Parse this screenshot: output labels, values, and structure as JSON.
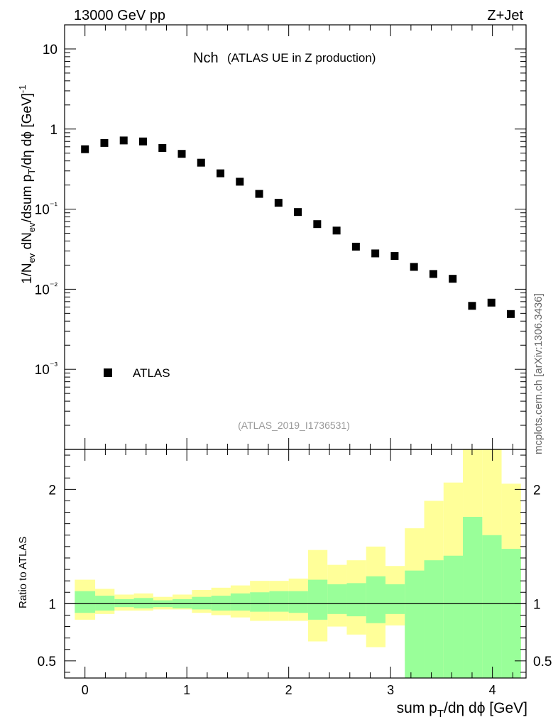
{
  "header": {
    "energy_label": "13000 GeV pp",
    "process_label": "Z+Jet",
    "side_label": "mcplots.cern.ch [arXiv:1306.3436]",
    "analysis_id": "(ATLAS_2019_I1736531)"
  },
  "chart_data": [
    {
      "type": "scatter",
      "panel": "main",
      "title": "Nch",
      "subtitle": "(ATLAS UE in Z production)",
      "ylabel": "1/N_ev dN_ev/dsum p_T/dη dϕ [GeV]^-1",
      "xlim": [
        -0.2,
        4.33
      ],
      "ylim": [
        0.0001,
        20
      ],
      "yscale": "log",
      "y_ticks": [
        "10⁻³",
        "10⁻²",
        "10⁻¹",
        "1",
        "10"
      ],
      "legend": {
        "position": "lower-left",
        "entries": [
          "ATLAS"
        ]
      },
      "series": [
        {
          "name": "ATLAS",
          "marker": "square",
          "x": [
            0.0,
            0.19,
            0.38,
            0.57,
            0.76,
            0.95,
            1.14,
            1.33,
            1.52,
            1.71,
            1.9,
            2.09,
            2.28,
            2.47,
            2.66,
            2.85,
            3.04,
            3.23,
            3.42,
            3.61,
            3.8,
            3.99,
            4.18
          ],
          "values": [
            0.56,
            0.67,
            0.72,
            0.7,
            0.58,
            0.49,
            0.38,
            0.28,
            0.22,
            0.155,
            0.12,
            0.092,
            0.065,
            0.054,
            0.034,
            0.028,
            0.026,
            0.019,
            0.0155,
            0.0135,
            0.0062,
            0.0068,
            0.0049
          ]
        }
      ]
    },
    {
      "type": "area",
      "panel": "ratio",
      "ylabel": "Ratio to ATLAS",
      "xlabel": "sum p_T/dη dϕ [GeV]",
      "xlim": [
        -0.2,
        4.33
      ],
      "ylim": [
        0.35,
        2.35
      ],
      "x_ticks": [
        "0",
        "1",
        "2",
        "3",
        "4"
      ],
      "y_ticks": [
        "0.5",
        "1",
        "2"
      ],
      "reference_line": 1,
      "bins": [
        -0.1,
        0.1,
        0.29,
        0.48,
        0.67,
        0.86,
        1.05,
        1.24,
        1.43,
        1.62,
        1.81,
        2.0,
        2.19,
        2.38,
        2.57,
        2.76,
        2.95,
        3.14,
        3.33,
        3.52,
        3.71,
        3.9,
        4.09,
        4.28
      ],
      "series": [
        {
          "name": "outer band",
          "color": "#ffff99",
          "low": [
            0.86,
            0.91,
            0.94,
            0.94,
            0.95,
            0.95,
            0.92,
            0.9,
            0.88,
            0.85,
            0.85,
            0.85,
            0.67,
            0.8,
            0.73,
            0.62,
            0.81,
            0.5,
            0.35,
            0.35,
            0.35,
            0.35,
            0.6
          ],
          "high": [
            1.21,
            1.13,
            1.08,
            1.09,
            1.06,
            1.08,
            1.12,
            1.14,
            1.16,
            1.2,
            1.2,
            1.22,
            1.47,
            1.34,
            1.38,
            1.5,
            1.33,
            1.66,
            1.9,
            2.06,
            2.35,
            2.35,
            2.05
          ]
        },
        {
          "name": "inner band",
          "color": "#99ff99",
          "low": [
            0.92,
            0.94,
            0.97,
            0.96,
            0.97,
            0.96,
            0.95,
            0.94,
            0.94,
            0.93,
            0.93,
            0.92,
            0.86,
            0.91,
            0.89,
            0.83,
            0.91,
            0.35,
            0.35,
            0.35,
            0.35,
            0.35,
            0.35
          ],
          "high": [
            1.11,
            1.07,
            1.04,
            1.05,
            1.03,
            1.04,
            1.06,
            1.07,
            1.09,
            1.1,
            1.11,
            1.11,
            1.21,
            1.17,
            1.18,
            1.24,
            1.17,
            1.29,
            1.38,
            1.42,
            1.76,
            1.6,
            1.48
          ]
        }
      ]
    }
  ]
}
